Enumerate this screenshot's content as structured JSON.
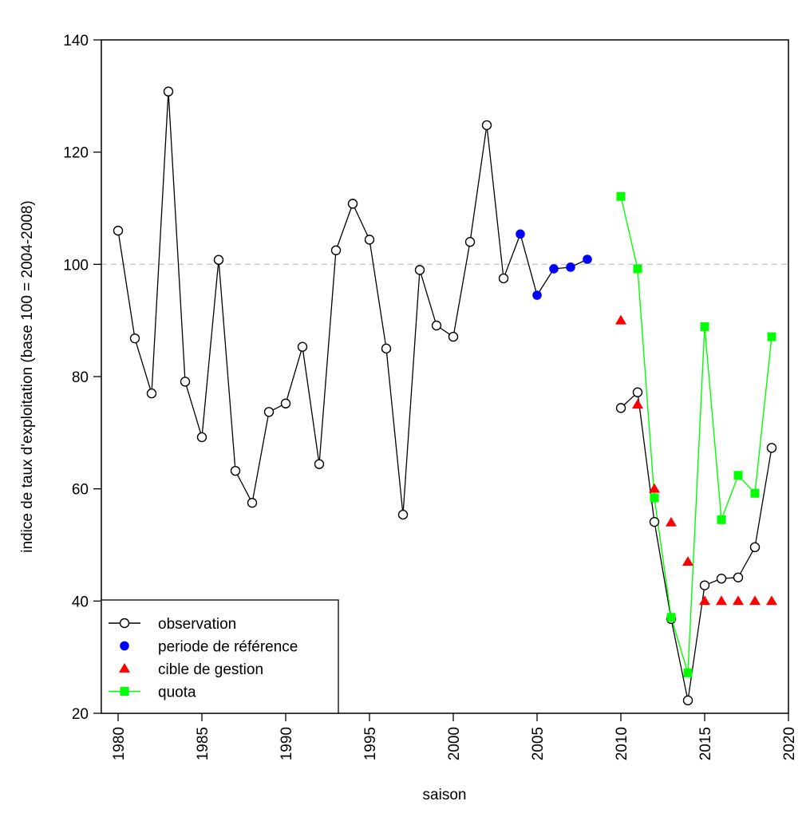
{
  "chart_data": {
    "type": "line",
    "xlabel": "saison",
    "ylabel": "indice de taux d'exploitation (base 100 = 2004-2008)",
    "xlim": [
      1979,
      2020
    ],
    "ylim": [
      20,
      140
    ],
    "x_ticks": [
      1980,
      1985,
      1990,
      1995,
      2000,
      2005,
      2010,
      2015,
      2020
    ],
    "y_ticks": [
      20,
      40,
      60,
      80,
      100,
      120,
      140
    ],
    "reference_line": 100,
    "legend_position": "bottom-left",
    "series": [
      {
        "name": "observation",
        "color": "#000000",
        "marker": "open-circle",
        "segments": [
          {
            "x": [
              1980,
              1981,
              1982,
              1983,
              1984,
              1985,
              1986,
              1987,
              1988,
              1989,
              1990,
              1991,
              1992,
              1993,
              1994,
              1995,
              1996,
              1997,
              1998,
              1999,
              2000,
              2001,
              2002,
              2003,
              2004
            ],
            "y": [
              106.0,
              86.8,
              77.0,
              130.8,
              79.1,
              69.2,
              100.8,
              63.2,
              57.5,
              73.7,
              75.2,
              85.3,
              64.4,
              102.5,
              110.8,
              104.4,
              85.0,
              55.4,
              99.0,
              89.1,
              87.1,
              104.0,
              124.8,
              97.5,
              105.4
            ]
          },
          {
            "x": [
              2010,
              2011,
              2012,
              2013,
              2014,
              2015,
              2016,
              2017,
              2018,
              2019
            ],
            "y": [
              74.4,
              77.2,
              54.1,
              36.8,
              22.3,
              42.8,
              44.0,
              44.2,
              49.6,
              67.3
            ]
          }
        ]
      },
      {
        "name": "periode de référence",
        "color": "#0000ff",
        "marker": "filled-circle",
        "x": [
          2004,
          2005,
          2006,
          2007,
          2008
        ],
        "y": [
          105.4,
          94.5,
          99.2,
          99.5,
          100.9
        ]
      },
      {
        "name": "cible de gestion",
        "color": "#ff0000",
        "marker": "filled-triangle",
        "x": [
          2010,
          2011,
          2012,
          2013,
          2014,
          2015,
          2016,
          2017,
          2018,
          2019
        ],
        "y": [
          90,
          75,
          60,
          54,
          47,
          40,
          40,
          40,
          40,
          40
        ]
      },
      {
        "name": "quota",
        "color": "#00ff00",
        "marker": "filled-square",
        "x": [
          2010,
          2011,
          2012,
          2013,
          2014,
          2015,
          2016,
          2017,
          2018,
          2019
        ],
        "y": [
          112.1,
          99.2,
          58.4,
          37.1,
          27.2,
          88.9,
          54.5,
          62.4,
          59.2,
          87.1
        ]
      }
    ]
  }
}
